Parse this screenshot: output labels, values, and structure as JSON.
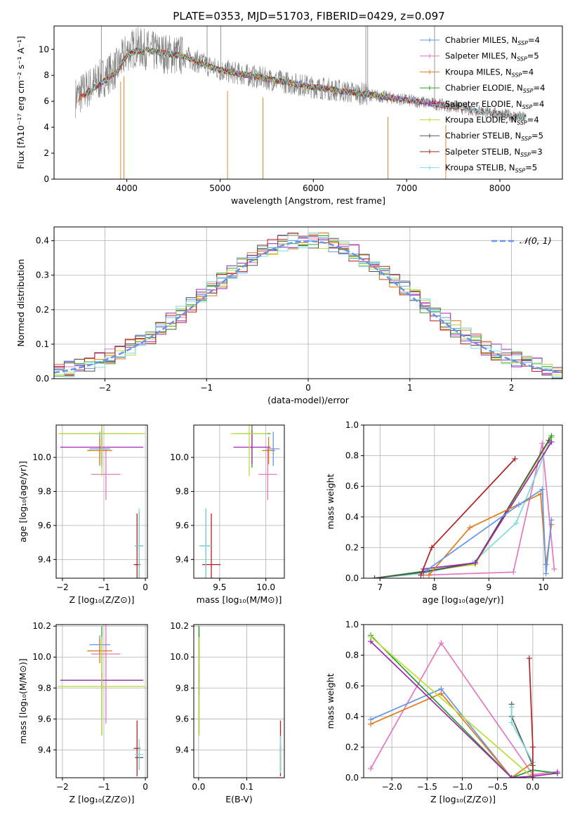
{
  "title": "PLATE=0353, MJD=51703, FIBERID=0429, z=0.097",
  "models": [
    {
      "name": "Chabrier MILES, N",
      "sub": "SSP",
      "suffix": "=4",
      "color": "#6495ed"
    },
    {
      "name": "Salpeter MILES, N",
      "sub": "SSP",
      "suffix": "=5",
      "color": "#e377c2"
    },
    {
      "name": "Kroupa MILES, N",
      "sub": "SSP",
      "suffix": "=4",
      "color": "#e07b1c"
    },
    {
      "name": "Chabrier ELODIE, N",
      "sub": "SSP",
      "suffix": "=4",
      "color": "#2ca02c"
    },
    {
      "name": "Salpeter ELODIE, N",
      "sub": "SSP",
      "suffix": "=4",
      "color": "#9c27b0"
    },
    {
      "name": "Kroupa ELODIE, N",
      "sub": "SSP",
      "suffix": "=4",
      "color": "#bcdc3c"
    },
    {
      "name": "Chabrier STELIB, N",
      "sub": "SSP",
      "suffix": "=5",
      "color": "#555555"
    },
    {
      "name": "Salpeter STELIB, N",
      "sub": "SSP",
      "suffix": "=3",
      "color": "#b22222"
    },
    {
      "name": "Kroupa STELIB, N",
      "sub": "SSP",
      "suffix": "=5",
      "color": "#7fdbdb"
    }
  ],
  "chart_data": [
    {
      "id": "spectrum",
      "type": "line",
      "xlabel": "wavelength [Angstrom, rest frame]",
      "ylabel": "Flux [fλ10⁻¹⁷ erg cm⁻² s⁻¹ A⁻¹]",
      "xlim": [
        3220,
        8670
      ],
      "ylim": [
        0,
        11.8
      ],
      "xticks": [
        4000,
        5000,
        6000,
        7000,
        8000
      ],
      "yticks": [
        0,
        2,
        4,
        6,
        8,
        10
      ],
      "data_range": [
        3450,
        8280
      ],
      "data_color": "#808080",
      "continuum": [
        [
          3450,
          6.3
        ],
        [
          3700,
          7.6
        ],
        [
          3900,
          8.6
        ],
        [
          4000,
          9.8
        ],
        [
          4100,
          10.2
        ],
        [
          4300,
          9.8
        ],
        [
          4600,
          9.5
        ],
        [
          5000,
          8.4
        ],
        [
          5300,
          8.0
        ],
        [
          5600,
          7.6
        ],
        [
          6000,
          7.1
        ],
        [
          6500,
          6.6
        ],
        [
          7000,
          6.1
        ],
        [
          7500,
          5.6
        ],
        [
          8000,
          5.0
        ],
        [
          8280,
          4.7
        ]
      ],
      "emission_lines": [
        [
          3727,
          11.8
        ],
        [
          4861,
          11.8
        ],
        [
          5007,
          11.8
        ],
        [
          6563,
          11.8
        ],
        [
          6583,
          11.8
        ],
        [
          7300,
          11.8
        ]
      ],
      "absorption_lines": [
        [
          3934,
          0
        ],
        [
          3969,
          0
        ],
        [
          5080,
          0
        ],
        [
          5460,
          0
        ],
        [
          6800,
          0
        ],
        [
          7420,
          0
        ]
      ]
    },
    {
      "id": "residuals",
      "type": "bar",
      "xlabel": "(data-model)/error",
      "ylabel": "Normed distribution",
      "xlim": [
        -2.5,
        2.5
      ],
      "ylim": [
        0,
        0.44
      ],
      "xticks": [
        -2,
        -1,
        0,
        1,
        2
      ],
      "yticks": [
        0.0,
        0.1,
        0.2,
        0.3,
        0.4
      ],
      "legend": "𝒩(0, 1)",
      "gaussian_color": "#6495ed"
    },
    {
      "id": "age-vs-Z",
      "type": "scatter",
      "xlabel": "Z [log₁₀(Z/Z⊙)]",
      "ylabel": "age  [log₁₀(age/yr)]",
      "xlim": [
        -2.15,
        0.05
      ],
      "ylim": [
        9.29,
        10.19
      ],
      "xticks": [
        -2,
        -1,
        0
      ],
      "yticks": [
        9.4,
        9.6,
        9.8,
        10.0
      ],
      "points": [
        {
          "x": -1.1,
          "y": 10.05,
          "xerr": 0.25,
          "yerr": 0.1,
          "color": "#6495ed"
        },
        {
          "x": -0.95,
          "y": 9.9,
          "xerr": 0.35,
          "yerr": 0.15,
          "color": "#e377c2"
        },
        {
          "x": -1.1,
          "y": 10.04,
          "xerr": 0.3,
          "yerr": 0.08,
          "color": "#e07b1c"
        },
        {
          "x": -1.05,
          "y": 10.14,
          "xerr": 1.0,
          "yerr": 0.2,
          "color": "#2ca02c"
        },
        {
          "x": -1.05,
          "y": 10.06,
          "xerr": 1.0,
          "yerr": 0.1,
          "color": "#9c27b0"
        },
        {
          "x": -1.05,
          "y": 10.14,
          "xerr": 1.05,
          "yerr": 0.25,
          "color": "#bcdc3c"
        },
        {
          "x": -0.15,
          "y": 9.48,
          "xerr": 0.1,
          "yerr": 0.2,
          "color": "#555555"
        },
        {
          "x": -0.2,
          "y": 9.37,
          "xerr": 0.08,
          "yerr": 0.3,
          "color": "#b22222"
        },
        {
          "x": -0.15,
          "y": 9.48,
          "xerr": 0.1,
          "yerr": 0.22,
          "color": "#7fdbdb"
        }
      ]
    },
    {
      "id": "age-vs-mass",
      "type": "scatter",
      "xlabel": "mass [log₁₀(M/M⊙)]",
      "ylabel": "",
      "xlim": [
        9.22,
        10.2
      ],
      "ylim": [
        9.29,
        10.19
      ],
      "xticks": [
        9.5,
        10.0
      ],
      "yticks": [
        9.4,
        9.6,
        9.8,
        10.0
      ],
      "points": [
        {
          "x": 10.08,
          "y": 10.05,
          "xerr": 0.07,
          "yerr": 0.1,
          "color": "#6495ed"
        },
        {
          "x": 10.02,
          "y": 9.9,
          "xerr": 0.1,
          "yerr": 0.15,
          "color": "#e377c2"
        },
        {
          "x": 10.03,
          "y": 10.04,
          "xerr": 0.07,
          "yerr": 0.08,
          "color": "#e07b1c"
        },
        {
          "x": 9.85,
          "y": 10.14,
          "xerr": 0.2,
          "yerr": 0.2,
          "color": "#2ca02c"
        },
        {
          "x": 9.85,
          "y": 10.06,
          "xerr": 0.2,
          "yerr": 0.1,
          "color": "#9c27b0"
        },
        {
          "x": 9.82,
          "y": 10.14,
          "xerr": 0.2,
          "yerr": 0.25,
          "color": "#bcdc3c"
        },
        {
          "x": 9.35,
          "y": 9.48,
          "xerr": 0.07,
          "yerr": 0.22,
          "color": "#555555"
        },
        {
          "x": 9.41,
          "y": 9.37,
          "xerr": 0.1,
          "yerr": 0.3,
          "color": "#b22222"
        },
        {
          "x": 9.35,
          "y": 9.48,
          "xerr": 0.07,
          "yerr": 0.22,
          "color": "#7fdbdb"
        }
      ]
    },
    {
      "id": "mass-weight-vs-age",
      "type": "line",
      "xlabel": "age  [log₁₀(age/yr)]",
      "ylabel": "mass weight",
      "xlim": [
        6.7,
        10.35
      ],
      "ylim": [
        0,
        1.0
      ],
      "xticks": [
        7,
        8,
        9,
        10
      ],
      "yticks": [
        0.0,
        0.2,
        0.4,
        0.6,
        0.8,
        1.0
      ],
      "series": [
        {
          "color": "#e377c2",
          "x": [
            7.8,
            9.45,
            9.98,
            10.2
          ],
          "y": [
            0.02,
            0.04,
            0.88,
            0.06
          ]
        },
        {
          "color": "#7fdbdb",
          "x": [
            6.9,
            7.75,
            8.7,
            9.5,
            10.15
          ],
          "y": [
            0.0,
            0.03,
            0.1,
            0.36,
            0.92
          ]
        },
        {
          "color": "#bcdc3c",
          "x": [
            6.9,
            7.9,
            8.75,
            10.15
          ],
          "y": [
            0.0,
            0.05,
            0.09,
            0.92
          ]
        },
        {
          "color": "#2ca02c",
          "x": [
            6.9,
            7.9,
            8.75,
            10.15
          ],
          "y": [
            0.0,
            0.05,
            0.1,
            0.93
          ]
        },
        {
          "color": "#555555",
          "x": [
            6.9,
            7.8,
            8.75,
            10.1
          ],
          "y": [
            0.0,
            0.04,
            0.1,
            0.9
          ]
        },
        {
          "color": "#9c27b0",
          "x": [
            7.8,
            8.75,
            10.15
          ],
          "y": [
            0.06,
            0.1,
            0.89
          ]
        },
        {
          "color": "#e07b1c",
          "x": [
            7.9,
            8.65,
            9.95,
            10.05,
            10.15
          ],
          "y": [
            0.02,
            0.33,
            0.55,
            0.09,
            0.35
          ]
        },
        {
          "color": "#6495ed",
          "x": [
            7.85,
            9.55,
            9.98,
            10.05,
            10.15
          ],
          "y": [
            0.05,
            0.48,
            0.58,
            0.03,
            0.38
          ]
        },
        {
          "color": "#b22222",
          "x": [
            7.75,
            7.95,
            9.48
          ],
          "y": [
            0.02,
            0.2,
            0.78
          ]
        }
      ]
    },
    {
      "id": "mass-vs-Z",
      "type": "scatter",
      "xlabel": "Z [log₁₀(Z/Z⊙)]",
      "ylabel": "mass [log₁₀(M/M⊙)]",
      "xlim": [
        -2.15,
        0.05
      ],
      "ylim": [
        9.22,
        10.21
      ],
      "xticks": [
        -2,
        -1,
        0
      ],
      "yticks": [
        9.4,
        9.6,
        9.8,
        10.0,
        10.2
      ],
      "points": [
        {
          "x": -1.1,
          "y": 10.08,
          "xerr": 0.25,
          "yerr": 0.06,
          "color": "#6495ed"
        },
        {
          "x": -0.95,
          "y": 10.02,
          "xerr": 0.35,
          "yerr": 0.45,
          "color": "#e377c2"
        },
        {
          "x": -1.1,
          "y": 10.04,
          "xerr": 0.3,
          "yerr": 0.08,
          "color": "#e07b1c"
        },
        {
          "x": -1.05,
          "y": 9.85,
          "xerr": 1.0,
          "yerr": 0.35,
          "color": "#2ca02c"
        },
        {
          "x": -1.05,
          "y": 9.85,
          "xerr": 1.0,
          "yerr": 0.05,
          "color": "#9c27b0"
        },
        {
          "x": -1.05,
          "y": 9.81,
          "xerr": 1.05,
          "yerr": 0.32,
          "color": "#bcdc3c"
        },
        {
          "x": -0.15,
          "y": 9.35,
          "xerr": 0.1,
          "yerr": 0.08,
          "color": "#555555"
        },
        {
          "x": -0.2,
          "y": 9.41,
          "xerr": 0.08,
          "yerr": 0.18,
          "color": "#b22222"
        },
        {
          "x": -0.15,
          "y": 9.37,
          "xerr": 0.1,
          "yerr": 0.1,
          "color": "#7fdbdb"
        }
      ]
    },
    {
      "id": "mass-vs-ebv",
      "type": "scatter",
      "xlabel": "E(B-V)",
      "ylabel": "",
      "xlim": [
        -0.01,
        0.178
      ],
      "ylim": [
        9.22,
        10.21
      ],
      "xticks": [
        0.0,
        0.1
      ],
      "yticks": [
        9.4,
        9.6,
        9.8,
        10.0,
        10.2
      ],
      "points": [
        {
          "x": 0.001,
          "y": 10.08,
          "xerr": 0.001,
          "yerr": 0.06,
          "color": "#6495ed"
        },
        {
          "x": 0.001,
          "y": 10.02,
          "xerr": 0.001,
          "yerr": 0.16,
          "color": "#e377c2"
        },
        {
          "x": 0.001,
          "y": 10.04,
          "xerr": 0.001,
          "yerr": 0.08,
          "color": "#e07b1c"
        },
        {
          "x": 0.001,
          "y": 9.85,
          "xerr": 0.001,
          "yerr": 0.35,
          "color": "#2ca02c"
        },
        {
          "x": 0.001,
          "y": 9.85,
          "xerr": 0.001,
          "yerr": 0.1,
          "color": "#9c27b0"
        },
        {
          "x": 0.001,
          "y": 9.81,
          "xerr": 0.001,
          "yerr": 0.32,
          "color": "#bcdc3c"
        },
        {
          "x": 0.17,
          "y": 9.35,
          "xerr": 0.001,
          "yerr": 0.08,
          "color": "#555555"
        },
        {
          "x": 0.17,
          "y": 9.41,
          "xerr": 0.001,
          "yerr": 0.18,
          "color": "#b22222"
        },
        {
          "x": 0.17,
          "y": 9.37,
          "xerr": 0.001,
          "yerr": 0.12,
          "color": "#7fdbdb"
        }
      ]
    },
    {
      "id": "mass-weight-vs-Z",
      "type": "line",
      "xlabel": "Z [log₁₀(Z/Z⊙)]",
      "ylabel": "mass weight",
      "xlim": [
        -2.4,
        0.42
      ],
      "ylim": [
        0,
        1.0
      ],
      "xticks": [
        -2.0,
        -1.5,
        -1.0,
        -0.5,
        0.0
      ],
      "yticks": [
        0.0,
        0.2,
        0.4,
        0.6,
        0.8,
        1.0
      ],
      "series": [
        {
          "color": "#e377c2",
          "x": [
            -2.3,
            -1.3,
            0.0,
            0.35
          ],
          "y": [
            0.06,
            0.88,
            0.02,
            0.04
          ]
        },
        {
          "color": "#6495ed",
          "x": [
            -2.3,
            -1.3,
            -0.3,
            0.0,
            0.35
          ],
          "y": [
            0.38,
            0.58,
            0.0,
            0.05,
            0.03
          ]
        },
        {
          "color": "#e07b1c",
          "x": [
            -2.3,
            -1.3,
            -0.3,
            0.0
          ],
          "y": [
            0.35,
            0.55,
            0.0,
            0.1
          ]
        },
        {
          "color": "#2ca02c",
          "x": [
            -2.3,
            -0.3,
            0.0,
            0.35
          ],
          "y": [
            0.93,
            0.0,
            0.05,
            0.03
          ]
        },
        {
          "color": "#bcdc3c",
          "x": [
            -2.3,
            0.0
          ],
          "y": [
            0.92,
            0.0
          ]
        },
        {
          "color": "#9c27b0",
          "x": [
            -2.3,
            -0.3,
            0.0,
            0.35
          ],
          "y": [
            0.89,
            0.0,
            0.01,
            0.03
          ]
        },
        {
          "color": "#555555",
          "x": [
            -0.3,
            -0.3,
            0.0,
            0.0
          ],
          "y": [
            0.48,
            0.4,
            0.08,
            0.0
          ]
        },
        {
          "color": "#7fdbdb",
          "x": [
            -0.3,
            -0.3,
            0.0,
            0.0
          ],
          "y": [
            0.46,
            0.36,
            0.1,
            0.0
          ]
        },
        {
          "color": "#b22222",
          "x": [
            -0.05,
            0.0,
            0.0
          ],
          "y": [
            0.78,
            0.2,
            0.0
          ]
        }
      ]
    }
  ]
}
